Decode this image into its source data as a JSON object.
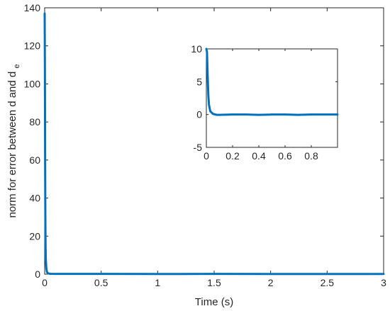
{
  "chart_data": [
    {
      "type": "line",
      "xlabel": "Time (s)",
      "ylabel": "norm for error between d and d",
      "ylabel_sub": "e",
      "xlim": [
        0,
        3
      ],
      "ylim": [
        0,
        140
      ],
      "xticks": [
        0,
        0.5,
        1,
        1.5,
        2,
        2.5,
        3
      ],
      "xtick_labels": [
        "0",
        "0.5",
        "1",
        "1.5",
        "2",
        "2.5",
        "3"
      ],
      "yticks": [
        0,
        20,
        40,
        60,
        80,
        100,
        120,
        140
      ],
      "ytick_labels": [
        "0",
        "20",
        "40",
        "60",
        "80",
        "100",
        "120",
        "140"
      ],
      "grid": false,
      "color": "#0072BD",
      "series": [
        {
          "x": [
            0,
            0.002,
            0.004,
            0.006,
            0.008,
            0.01,
            0.015,
            0.02,
            0.03,
            0.05,
            0.1,
            0.5,
            1,
            1.5,
            2,
            2.5,
            3
          ],
          "y": [
            137,
            110,
            60,
            30,
            15,
            8,
            3,
            1.2,
            0.4,
            0.2,
            0.15,
            0.12,
            0.1,
            0.12,
            0.1,
            0.1,
            0.1
          ]
        }
      ]
    },
    {
      "type": "line",
      "placement": "inset",
      "xlim": [
        0,
        1
      ],
      "ylim": [
        -5,
        10
      ],
      "xticks": [
        0,
        0.2,
        0.4,
        0.6,
        0.8
      ],
      "xtick_labels": [
        "0",
        "0.2",
        "0.4",
        "0.6",
        "0.8"
      ],
      "yticks": [
        -5,
        0,
        5,
        10
      ],
      "ytick_labels": [
        "-5",
        "0",
        "5",
        "10"
      ],
      "grid": false,
      "color": "#0072BD",
      "series": [
        {
          "x": [
            0,
            0.005,
            0.01,
            0.015,
            0.02,
            0.03,
            0.05,
            0.08,
            0.1,
            0.2,
            0.3,
            0.4,
            0.5,
            0.6,
            0.7,
            0.8,
            0.9,
            1.0
          ],
          "y": [
            10,
            9.5,
            6,
            3,
            1.5,
            0.5,
            0.1,
            -0.05,
            -0.05,
            0,
            0,
            -0.05,
            0,
            0,
            -0.05,
            0,
            0,
            0
          ]
        }
      ]
    }
  ]
}
